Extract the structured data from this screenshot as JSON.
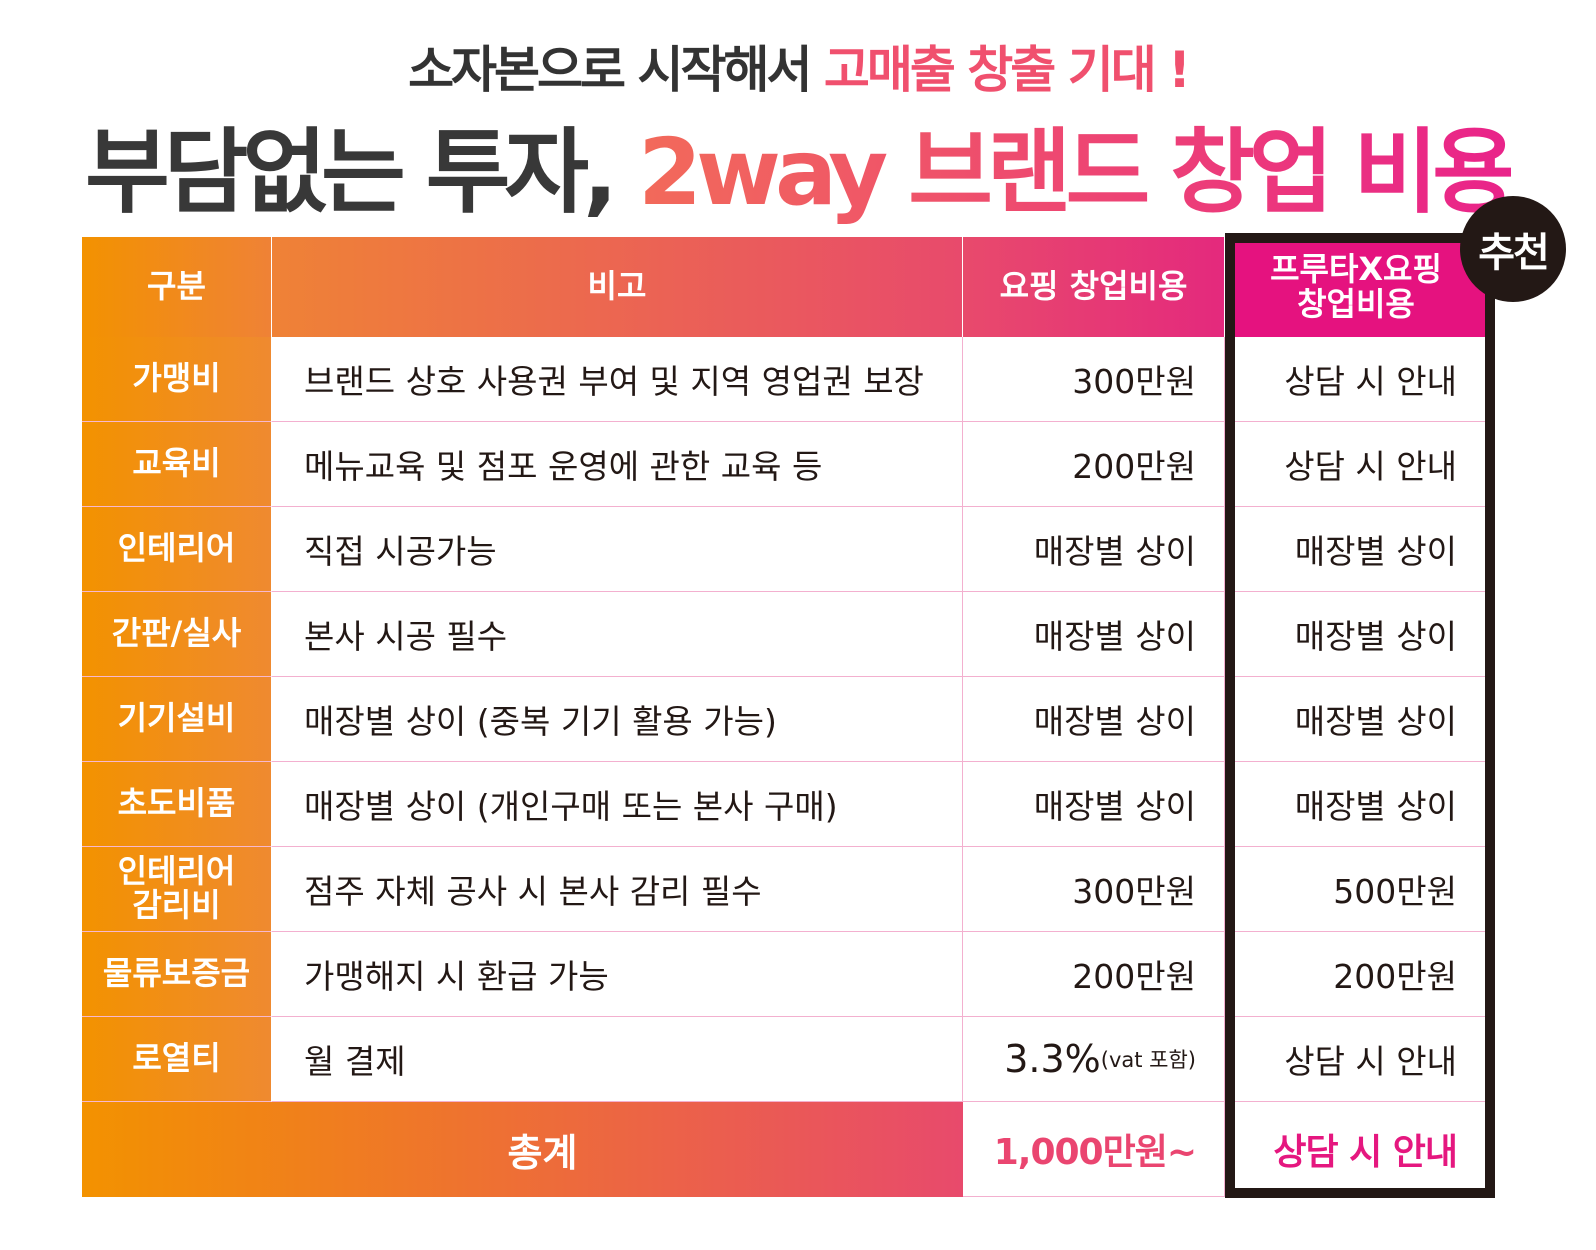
{
  "headline": {
    "line1_prefix": "소자본으로 시작해서 ",
    "line1_highlight": "고매출 창출 기대 !",
    "line2_prefix": "부담없는 투자, ",
    "line2_highlight": "2way 브랜드 창업 비용"
  },
  "badge": "추천",
  "colors": {
    "orange": "#f39200",
    "pink": "#e5127f",
    "dark": "#231815"
  },
  "table": {
    "headers": [
      "구분",
      "비고",
      "요핑 창업비용",
      "프루타X요핑\n창업비용"
    ],
    "rows": [
      {
        "label": "가맹비",
        "note": "브랜드 상호 사용권 부여 및 지역 영업권 보장",
        "yoping": "300만원",
        "fruta": "상담 시 안내"
      },
      {
        "label": "교육비",
        "note": "메뉴교육 및 점포 운영에 관한 교육 등",
        "yoping": "200만원",
        "fruta": "상담 시 안내"
      },
      {
        "label": "인테리어",
        "note": "직접 시공가능",
        "yoping": "매장별 상이",
        "fruta": "매장별 상이"
      },
      {
        "label": "간판/실사",
        "note": "본사 시공 필수",
        "yoping": "매장별 상이",
        "fruta": "매장별 상이"
      },
      {
        "label": "기기설비",
        "note": "매장별 상이 (중복 기기 활용 가능)",
        "yoping": "매장별 상이",
        "fruta": "매장별 상이"
      },
      {
        "label": "초도비품",
        "note": "매장별 상이 (개인구매 또는 본사 구매)",
        "yoping": "매장별 상이",
        "fruta": "매장별 상이"
      },
      {
        "label": "인테리어\n감리비",
        "note": "점주 자체 공사 시 본사 감리 필수",
        "yoping": "300만원",
        "fruta": "500만원"
      },
      {
        "label": "물류보증금",
        "note": "가맹해지 시 환급 가능",
        "yoping": "200만원",
        "fruta": "200만원"
      },
      {
        "label": "로열티",
        "note": "월 결제",
        "yoping": "3.3%",
        "yoping_suffix": "(vat 포함)",
        "fruta": "상담 시 안내"
      }
    ],
    "total": {
      "label": "총계",
      "yoping": "1,000만원~",
      "fruta": "상담 시 안내"
    }
  }
}
